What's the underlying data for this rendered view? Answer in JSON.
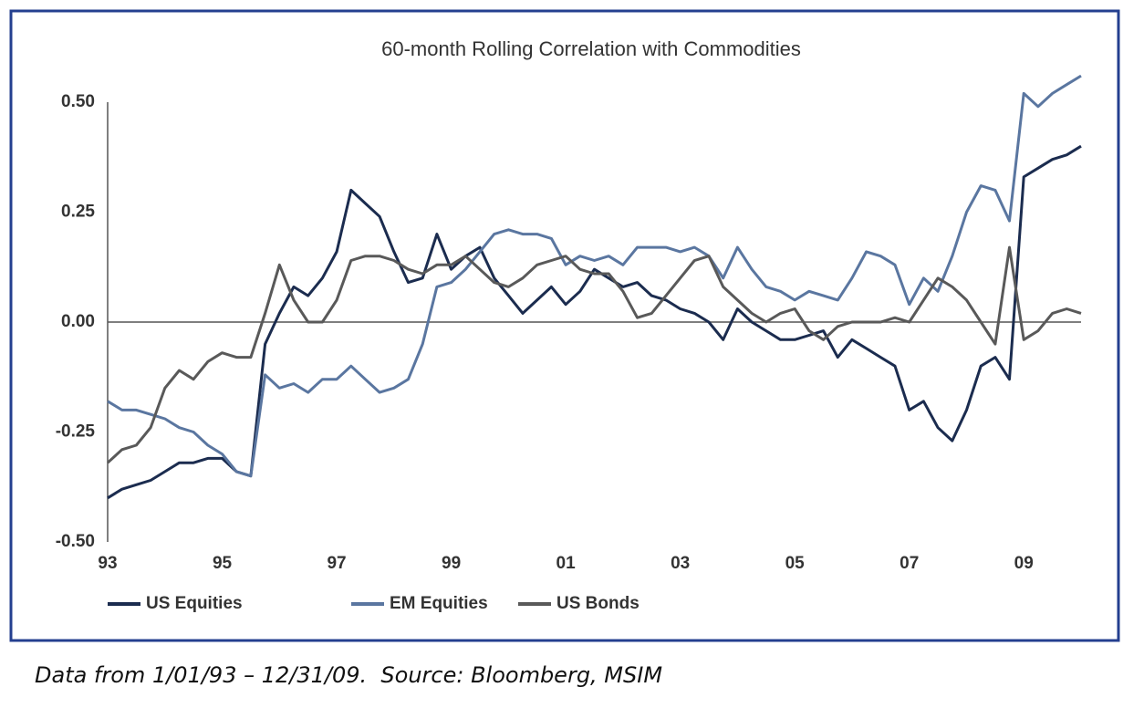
{
  "chart_data": {
    "type": "line",
    "title": "60-month Rolling Correlation with Commodities",
    "footnote": "Data from 1/01/93 – 12/31/09.  Source: Bloomberg, MSIM",
    "x": [
      1993,
      1993.25,
      1993.5,
      1993.75,
      1994,
      1994.25,
      1994.5,
      1994.75,
      1995,
      1995.25,
      1995.5,
      1995.75,
      1996,
      1996.25,
      1996.5,
      1996.75,
      1997,
      1997.25,
      1997.5,
      1997.75,
      1998,
      1998.25,
      1998.5,
      1998.75,
      1999,
      1999.25,
      1999.5,
      1999.75,
      2000,
      2000.25,
      2000.5,
      2000.75,
      2001,
      2001.25,
      2001.5,
      2001.75,
      2002,
      2002.25,
      2002.5,
      2002.75,
      2003,
      2003.25,
      2003.5,
      2003.75,
      2004,
      2004.25,
      2004.5,
      2004.75,
      2005,
      2005.25,
      2005.5,
      2005.75,
      2006,
      2006.25,
      2006.5,
      2006.75,
      2007,
      2007.25,
      2007.5,
      2007.75,
      2008,
      2008.25,
      2008.5,
      2008.75,
      2009,
      2009.25,
      2009.5,
      2009.75,
      2010
    ],
    "series": [
      {
        "name": "US Equities",
        "color": "#1b2c4f",
        "values": [
          -0.4,
          -0.38,
          -0.37,
          -0.36,
          -0.34,
          -0.32,
          -0.32,
          -0.31,
          -0.31,
          -0.34,
          -0.35,
          -0.05,
          0.02,
          0.08,
          0.06,
          0.1,
          0.16,
          0.3,
          0.27,
          0.24,
          0.16,
          0.09,
          0.1,
          0.2,
          0.12,
          0.15,
          0.17,
          0.1,
          0.06,
          0.02,
          0.05,
          0.08,
          0.04,
          0.07,
          0.12,
          0.1,
          0.08,
          0.09,
          0.06,
          0.05,
          0.03,
          0.02,
          0.0,
          -0.04,
          0.03,
          0.0,
          -0.02,
          -0.04,
          -0.04,
          -0.03,
          -0.02,
          -0.08,
          -0.04,
          -0.06,
          -0.08,
          -0.1,
          -0.2,
          -0.18,
          -0.24,
          -0.27,
          -0.2,
          -0.1,
          -0.08,
          -0.13,
          0.33,
          0.35,
          0.37,
          0.38,
          0.4
        ]
      },
      {
        "name": "EM Equities",
        "color": "#5a76a0",
        "values": [
          -0.18,
          -0.2,
          -0.2,
          -0.21,
          -0.22,
          -0.24,
          -0.25,
          -0.28,
          -0.3,
          -0.34,
          -0.35,
          -0.12,
          -0.15,
          -0.14,
          -0.16,
          -0.13,
          -0.13,
          -0.1,
          -0.13,
          -0.16,
          -0.15,
          -0.13,
          -0.05,
          0.08,
          0.09,
          0.12,
          0.16,
          0.2,
          0.21,
          0.2,
          0.2,
          0.19,
          0.13,
          0.15,
          0.14,
          0.15,
          0.13,
          0.17,
          0.17,
          0.17,
          0.16,
          0.17,
          0.15,
          0.1,
          0.17,
          0.12,
          0.08,
          0.07,
          0.05,
          0.07,
          0.06,
          0.05,
          0.1,
          0.16,
          0.15,
          0.13,
          0.04,
          0.1,
          0.07,
          0.15,
          0.25,
          0.31,
          0.3,
          0.23,
          0.52,
          0.49,
          0.52,
          0.54,
          0.56
        ]
      },
      {
        "name": "US Bonds",
        "color": "#595959",
        "values": [
          -0.32,
          -0.29,
          -0.28,
          -0.24,
          -0.15,
          -0.11,
          -0.13,
          -0.09,
          -0.07,
          -0.08,
          -0.08,
          0.02,
          0.13,
          0.05,
          0.0,
          0.0,
          0.05,
          0.14,
          0.15,
          0.15,
          0.14,
          0.12,
          0.11,
          0.13,
          0.13,
          0.15,
          0.12,
          0.09,
          0.08,
          0.1,
          0.13,
          0.14,
          0.15,
          0.12,
          0.11,
          0.11,
          0.07,
          0.01,
          0.02,
          0.06,
          0.1,
          0.14,
          0.15,
          0.08,
          0.05,
          0.02,
          0.0,
          0.02,
          0.03,
          -0.02,
          -0.04,
          -0.01,
          0.0,
          0.0,
          0.0,
          0.01,
          0.0,
          0.05,
          0.1,
          0.08,
          0.05,
          0.0,
          -0.05,
          0.17,
          -0.04,
          -0.02,
          0.02,
          0.03,
          0.02
        ]
      }
    ],
    "xlim": [
      1993,
      2010
    ],
    "xticks": [
      {
        "value": 1993,
        "label": "93"
      },
      {
        "value": 1995,
        "label": "95"
      },
      {
        "value": 1997,
        "label": "97"
      },
      {
        "value": 1999,
        "label": "99"
      },
      {
        "value": 2001,
        "label": "01"
      },
      {
        "value": 2003,
        "label": "03"
      },
      {
        "value": 2005,
        "label": "05"
      },
      {
        "value": 2007,
        "label": "07"
      },
      {
        "value": 2009,
        "label": "09"
      }
    ],
    "ylim": [
      -0.5,
      0.5
    ],
    "yticks": [
      {
        "value": 0.5,
        "label": "0.50"
      },
      {
        "value": 0.25,
        "label": "0.25"
      },
      {
        "value": 0,
        "label": "0.00"
      },
      {
        "value": -0.25,
        "label": "-0.25"
      },
      {
        "value": -0.5,
        "label": "-0.50"
      }
    ],
    "grid": false,
    "legend": "bottom"
  }
}
